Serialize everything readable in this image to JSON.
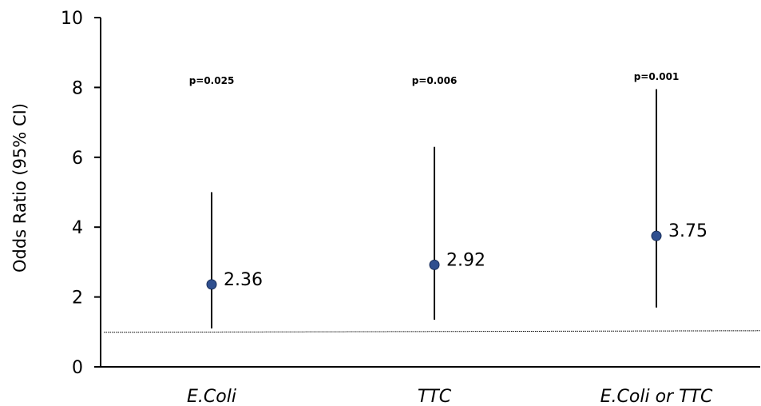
{
  "chart_data": {
    "type": "scatter",
    "title": "",
    "xlabel": "",
    "ylabel": "Odds Ratio  (95% CI)",
    "ylim": [
      0,
      10
    ],
    "yticks": [
      "0",
      "2",
      "4",
      "6",
      "8",
      "10"
    ],
    "reference_line": 1,
    "grid": false,
    "marker_color": "#2f4f8f",
    "points": [
      {
        "category": "E.Coli",
        "value": 2.36,
        "label": "2.36",
        "ci_low": 1.1,
        "ci_high": 5.0,
        "p_value": "p=0.025"
      },
      {
        "category": "TTC",
        "value": 2.92,
        "label": "2.92",
        "ci_low": 1.35,
        "ci_high": 6.3,
        "p_value": "p=0.006"
      },
      {
        "category": "E.Coli or TTC",
        "value": 3.75,
        "label": "3.75",
        "ci_low": 1.7,
        "ci_high": 7.95,
        "p_value": "p=0.001"
      }
    ]
  }
}
